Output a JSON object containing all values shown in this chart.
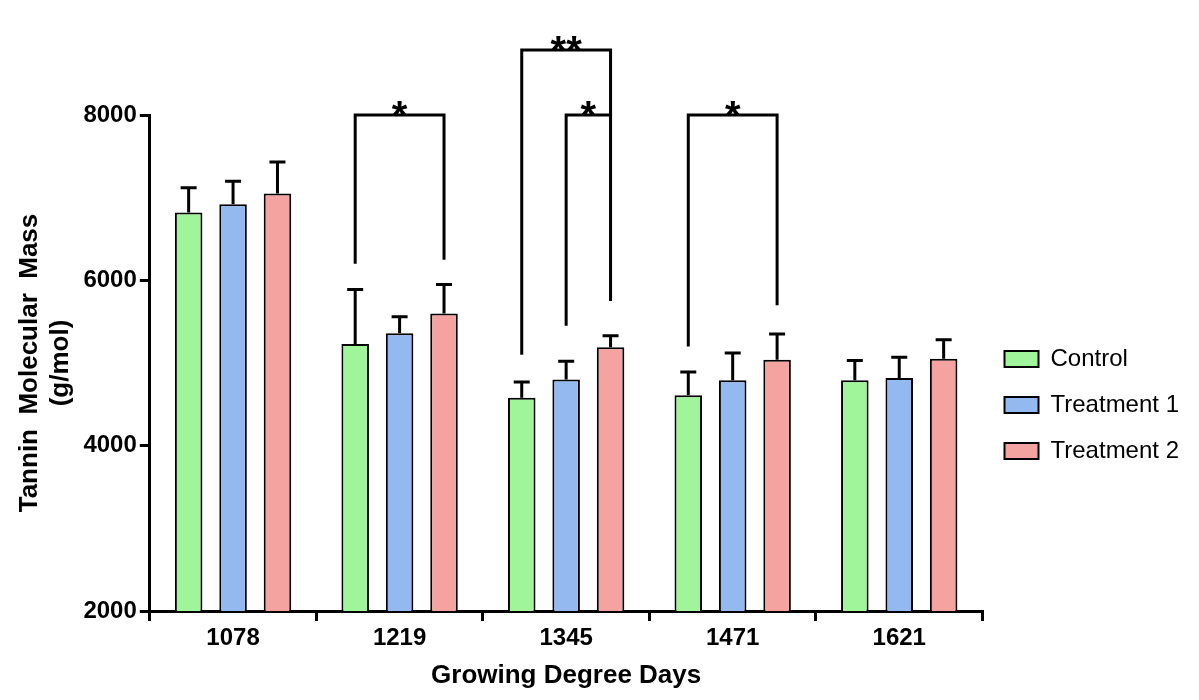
{
  "chart_data": {
    "type": "bar",
    "xlabel": "Growing Degree Days",
    "ylabel": "Tannin  Molecular  Mass\n(g/mol)",
    "categories": [
      "1078",
      "1219",
      "1345",
      "1471",
      "1621"
    ],
    "series": [
      {
        "name": "Control",
        "color": "#a0f59a",
        "values": [
          6820,
          5230,
          4580,
          4610,
          4790
        ],
        "errors": [
          [
            6820,
            7120
          ],
          [
            5230,
            5890
          ],
          [
            4580,
            4770
          ],
          [
            4610,
            4890
          ],
          [
            4790,
            5030
          ]
        ]
      },
      {
        "name": "Treatment 1",
        "color": "#93b9f0",
        "values": [
          6920,
          5360,
          4800,
          4790,
          4820
        ],
        "errors": [
          [
            6920,
            7200
          ],
          [
            5360,
            5560
          ],
          [
            4800,
            5020
          ],
          [
            4790,
            5120
          ],
          [
            4820,
            5070
          ]
        ]
      },
      {
        "name": "Treatment 2",
        "color": "#f5a3a0",
        "values": [
          7050,
          5600,
          5190,
          5040,
          5050
        ],
        "errors": [
          [
            7050,
            7430
          ],
          [
            5600,
            5950
          ],
          [
            5190,
            5330
          ],
          [
            5040,
            5350
          ],
          [
            5050,
            5280
          ]
        ]
      }
    ],
    "ylim": [
      2000,
      8000
    ],
    "yticks": [
      2000,
      4000,
      6000,
      8000
    ],
    "grid": false,
    "legend": "right",
    "annotations": [
      "*",
      "**",
      "*",
      "*"
    ]
  }
}
